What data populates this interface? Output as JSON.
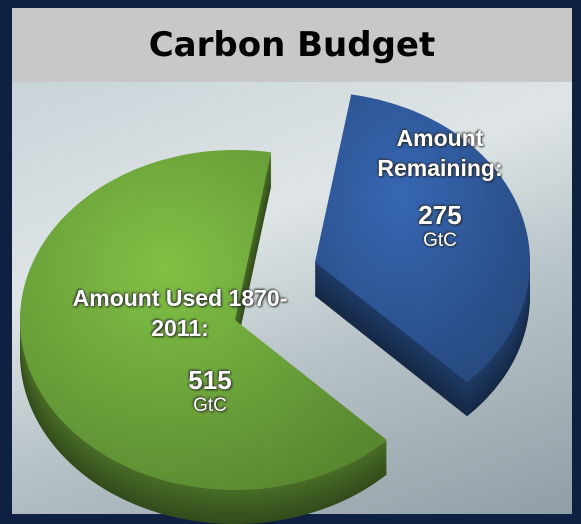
{
  "chart_data": {
    "type": "pie",
    "title": "Carbon Budget",
    "categories": [
      "Amount Used 1870-2011:",
      "Amount Remaining:"
    ],
    "values": [
      515,
      275
    ],
    "unit": "GtC",
    "colors": [
      "#6fa83c",
      "#2f5a9c"
    ]
  }
}
